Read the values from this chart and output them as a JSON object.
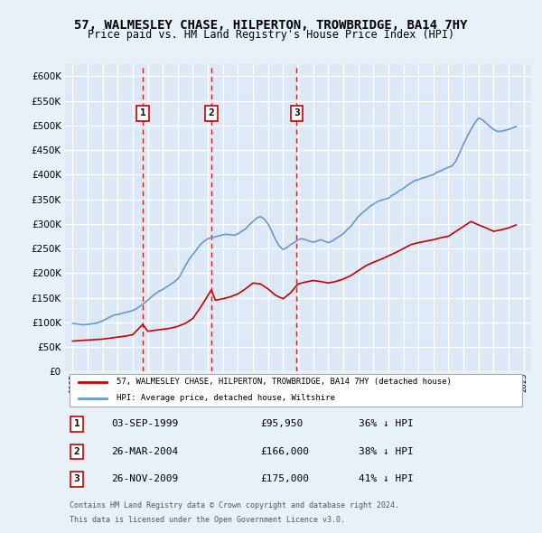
{
  "title": "57, WALMESLEY CHASE, HILPERTON, TROWBRIDGE, BA14 7HY",
  "subtitle": "Price paid vs. HM Land Registry's House Price Index (HPI)",
  "legend_label_red": "57, WALMESLEY CHASE, HILPERTON, TROWBRIDGE, BA14 7HY (detached house)",
  "legend_label_blue": "HPI: Average price, detached house, Wiltshire",
  "footer1": "Contains HM Land Registry data © Crown copyright and database right 2024.",
  "footer2": "This data is licensed under the Open Government Licence v3.0.",
  "transactions": [
    {
      "num": 1,
      "date": "03-SEP-1999",
      "price": 95950,
      "pct": "36% ↓ HPI",
      "year": 1999.67
    },
    {
      "num": 2,
      "date": "26-MAR-2004",
      "price": 166000,
      "pct": "38% ↓ HPI",
      "year": 2004.23
    },
    {
      "num": 3,
      "date": "26-NOV-2009",
      "price": 175000,
      "pct": "41% ↓ HPI",
      "year": 2009.9
    }
  ],
  "ylim": [
    0,
    625000
  ],
  "yticks": [
    0,
    50000,
    100000,
    150000,
    200000,
    250000,
    300000,
    350000,
    400000,
    450000,
    500000,
    550000,
    600000
  ],
  "xlim": [
    1994.5,
    2025.5
  ],
  "background_color": "#e8f0f8",
  "plot_bg_color": "#dce8f5",
  "grid_color": "#ffffff",
  "red_color": "#cc0000",
  "blue_color": "#6699cc",
  "hpi_data": {
    "years": [
      1995.0,
      1995.25,
      1995.5,
      1995.75,
      1996.0,
      1996.25,
      1996.5,
      1996.75,
      1997.0,
      1997.25,
      1997.5,
      1997.75,
      1998.0,
      1998.25,
      1998.5,
      1998.75,
      1999.0,
      1999.25,
      1999.5,
      1999.75,
      2000.0,
      2000.25,
      2000.5,
      2000.75,
      2001.0,
      2001.25,
      2001.5,
      2001.75,
      2002.0,
      2002.25,
      2002.5,
      2002.75,
      2003.0,
      2003.25,
      2003.5,
      2003.75,
      2004.0,
      2004.25,
      2004.5,
      2004.75,
      2005.0,
      2005.25,
      2005.5,
      2005.75,
      2006.0,
      2006.25,
      2006.5,
      2006.75,
      2007.0,
      2007.25,
      2007.5,
      2007.75,
      2008.0,
      2008.25,
      2008.5,
      2008.75,
      2009.0,
      2009.25,
      2009.5,
      2009.75,
      2010.0,
      2010.25,
      2010.5,
      2010.75,
      2011.0,
      2011.25,
      2011.5,
      2011.75,
      2012.0,
      2012.25,
      2012.5,
      2012.75,
      2013.0,
      2013.25,
      2013.5,
      2013.75,
      2014.0,
      2014.25,
      2014.5,
      2014.75,
      2015.0,
      2015.25,
      2015.5,
      2015.75,
      2016.0,
      2016.25,
      2016.5,
      2016.75,
      2017.0,
      2017.25,
      2017.5,
      2017.75,
      2018.0,
      2018.25,
      2018.5,
      2018.75,
      2019.0,
      2019.25,
      2019.5,
      2019.75,
      2020.0,
      2020.25,
      2020.5,
      2020.75,
      2021.0,
      2021.25,
      2021.5,
      2021.75,
      2022.0,
      2022.25,
      2022.5,
      2022.75,
      2023.0,
      2023.25,
      2023.5,
      2023.75,
      2024.0,
      2024.25,
      2024.5
    ],
    "values": [
      98000,
      97000,
      96000,
      95000,
      96000,
      97000,
      98000,
      100000,
      103000,
      107000,
      111000,
      115000,
      116000,
      118000,
      120000,
      122000,
      124000,
      128000,
      133000,
      139000,
      145000,
      152000,
      158000,
      163000,
      167000,
      172000,
      177000,
      182000,
      188000,
      200000,
      215000,
      228000,
      238000,
      248000,
      258000,
      265000,
      270000,
      272000,
      274000,
      276000,
      278000,
      279000,
      278000,
      277000,
      280000,
      285000,
      290000,
      298000,
      305000,
      312000,
      315000,
      310000,
      300000,
      285000,
      268000,
      255000,
      248000,
      252000,
      258000,
      262000,
      268000,
      270000,
      268000,
      265000,
      263000,
      265000,
      268000,
      265000,
      262000,
      265000,
      270000,
      275000,
      280000,
      288000,
      295000,
      305000,
      315000,
      322000,
      328000,
      335000,
      340000,
      345000,
      348000,
      350000,
      352000,
      358000,
      362000,
      368000,
      372000,
      378000,
      383000,
      388000,
      390000,
      393000,
      395000,
      398000,
      400000,
      405000,
      408000,
      412000,
      415000,
      418000,
      428000,
      445000,
      462000,
      478000,
      492000,
      505000,
      515000,
      512000,
      505000,
      498000,
      492000,
      488000,
      488000,
      490000,
      492000,
      495000,
      498000
    ]
  },
  "property_data": {
    "years": [
      1995.0,
      1995.5,
      1996.0,
      1996.5,
      1997.0,
      1997.5,
      1998.0,
      1998.5,
      1999.0,
      1999.67,
      2000.0,
      2000.5,
      2001.0,
      2001.5,
      2002.0,
      2002.5,
      2003.0,
      2003.5,
      2004.23,
      2004.5,
      2005.0,
      2005.5,
      2006.0,
      2006.5,
      2007.0,
      2007.5,
      2008.0,
      2008.5,
      2009.0,
      2009.5,
      2009.9,
      2010.0,
      2010.5,
      2011.0,
      2011.5,
      2012.0,
      2012.5,
      2013.0,
      2013.5,
      2014.0,
      2014.5,
      2015.0,
      2015.5,
      2016.0,
      2016.5,
      2017.0,
      2017.5,
      2018.0,
      2018.5,
      2019.0,
      2019.5,
      2020.0,
      2020.5,
      2021.0,
      2021.5,
      2022.0,
      2022.5,
      2023.0,
      2023.5,
      2024.0,
      2024.5
    ],
    "values": [
      62000,
      63000,
      64000,
      65000,
      66000,
      68000,
      70000,
      72000,
      75000,
      95950,
      82000,
      84000,
      86000,
      88000,
      92000,
      98000,
      108000,
      130000,
      166000,
      145000,
      148000,
      152000,
      158000,
      168000,
      180000,
      178000,
      168000,
      155000,
      148000,
      160000,
      175000,
      178000,
      182000,
      185000,
      183000,
      180000,
      183000,
      188000,
      195000,
      205000,
      215000,
      222000,
      228000,
      235000,
      242000,
      250000,
      258000,
      262000,
      265000,
      268000,
      272000,
      275000,
      285000,
      295000,
      305000,
      298000,
      292000,
      285000,
      288000,
      292000,
      298000
    ]
  }
}
